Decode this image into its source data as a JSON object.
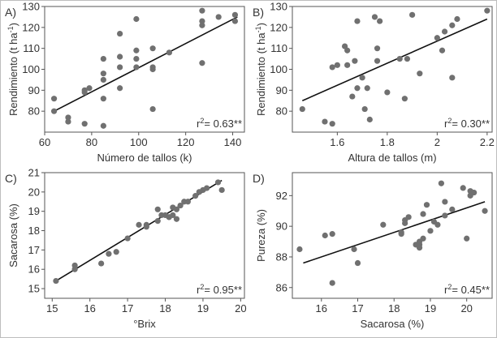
{
  "chart_data": [
    {
      "type": "scatter",
      "panel_label": "A)",
      "xlabel": "Número de tallos (k)",
      "ylabel": "Rendimiento (t ha-1)",
      "xlim": [
        60,
        145
      ],
      "ylim": [
        70,
        130
      ],
      "xticks": [
        60,
        80,
        100,
        120,
        140
      ],
      "yticks": [
        80,
        90,
        100,
        110,
        120,
        130
      ],
      "grid": false,
      "annotation": {
        "r2": "0.63",
        "sig": "**"
      },
      "fit": {
        "x1": 64,
        "y1": 80,
        "x2": 142,
        "y2": 125
      },
      "points": [
        [
          64,
          86
        ],
        [
          64,
          80
        ],
        [
          70,
          77
        ],
        [
          70,
          75
        ],
        [
          77,
          74
        ],
        [
          77,
          89
        ],
        [
          77,
          90
        ],
        [
          79,
          91
        ],
        [
          85,
          73
        ],
        [
          85,
          86
        ],
        [
          85,
          95
        ],
        [
          85,
          98
        ],
        [
          85,
          105
        ],
        [
          92,
          91
        ],
        [
          92,
          101
        ],
        [
          92,
          106
        ],
        [
          92,
          117
        ],
        [
          99,
          101
        ],
        [
          99,
          105
        ],
        [
          99,
          109
        ],
        [
          99,
          124
        ],
        [
          106,
          101
        ],
        [
          106,
          100
        ],
        [
          106,
          110
        ],
        [
          106,
          81
        ],
        [
          113,
          108
        ],
        [
          127,
          103
        ],
        [
          127,
          123
        ],
        [
          127,
          121
        ],
        [
          127,
          128
        ],
        [
          134,
          125
        ],
        [
          141,
          126
        ],
        [
          141,
          123
        ]
      ]
    },
    {
      "type": "scatter",
      "panel_label": "B)",
      "xlabel": "Altura de tallos (m)",
      "ylabel": "Rendimiento (t ha-1)",
      "xlim": [
        1.42,
        2.22
      ],
      "ylim": [
        70,
        130
      ],
      "xticks": [
        1.6,
        1.8,
        2.0,
        2.2
      ],
      "yticks": [
        80,
        90,
        100,
        110,
        120,
        130
      ],
      "grid": false,
      "annotation": {
        "r2": "0.30",
        "sig": "**"
      },
      "fit": {
        "x1": 1.46,
        "y1": 85,
        "x2": 2.2,
        "y2": 124
      },
      "points": [
        [
          1.46,
          81
        ],
        [
          1.55,
          75
        ],
        [
          1.58,
          101
        ],
        [
          1.58,
          74
        ],
        [
          1.6,
          102
        ],
        [
          1.63,
          111
        ],
        [
          1.64,
          102
        ],
        [
          1.64,
          109
        ],
        [
          1.66,
          87
        ],
        [
          1.67,
          104
        ],
        [
          1.68,
          91
        ],
        [
          1.68,
          123
        ],
        [
          1.7,
          96
        ],
        [
          1.71,
          81
        ],
        [
          1.72,
          91
        ],
        [
          1.73,
          76
        ],
        [
          1.75,
          125
        ],
        [
          1.76,
          110
        ],
        [
          1.76,
          104
        ],
        [
          1.77,
          123
        ],
        [
          1.8,
          89
        ],
        [
          1.85,
          105
        ],
        [
          1.87,
          86
        ],
        [
          1.88,
          105
        ],
        [
          1.9,
          126
        ],
        [
          1.93,
          98
        ],
        [
          2.0,
          115
        ],
        [
          2.02,
          109
        ],
        [
          2.03,
          118
        ],
        [
          2.06,
          121
        ],
        [
          2.06,
          96
        ],
        [
          2.08,
          124
        ],
        [
          2.2,
          128
        ]
      ]
    },
    {
      "type": "scatter",
      "panel_label": "C)",
      "xlabel": "°Brix",
      "ylabel": "Sacarosa (%)",
      "xlim": [
        14.8,
        20.1
      ],
      "ylim": [
        14.5,
        21
      ],
      "xticks": [
        15,
        16,
        17,
        18,
        19,
        20
      ],
      "yticks": [
        15,
        16,
        17,
        18,
        19,
        20,
        21
      ],
      "grid": false,
      "annotation": {
        "r2": "0.95",
        "sig": "**"
      },
      "fit": {
        "x1": 15.1,
        "y1": 15.4,
        "x2": 19.5,
        "y2": 20.6
      },
      "points": [
        [
          15.1,
          15.4
        ],
        [
          15.6,
          16.2
        ],
        [
          15.6,
          16.0
        ],
        [
          16.3,
          16.3
        ],
        [
          16.5,
          16.8
        ],
        [
          16.7,
          16.9
        ],
        [
          17.0,
          17.6
        ],
        [
          17.3,
          18.3
        ],
        [
          17.5,
          18.2
        ],
        [
          17.5,
          18.3
        ],
        [
          17.8,
          18.5
        ],
        [
          17.8,
          19.1
        ],
        [
          17.9,
          18.8
        ],
        [
          18.0,
          18.8
        ],
        [
          18.1,
          18.7
        ],
        [
          18.1,
          18.7
        ],
        [
          18.2,
          19.2
        ],
        [
          18.2,
          18.8
        ],
        [
          18.3,
          18.6
        ],
        [
          18.3,
          19.1
        ],
        [
          18.4,
          19.3
        ],
        [
          18.5,
          19.5
        ],
        [
          18.6,
          19.5
        ],
        [
          18.8,
          19.8
        ],
        [
          18.9,
          20.0
        ],
        [
          19.0,
          20.1
        ],
        [
          19.1,
          20.2
        ],
        [
          19.4,
          20.5
        ],
        [
          19.5,
          20.1
        ]
      ]
    },
    {
      "type": "scatter",
      "panel_label": "D)",
      "xlabel": "Sacarosa (%)",
      "ylabel": "Pureza (%)",
      "xlim": [
        15.2,
        20.7
      ],
      "ylim": [
        85.3,
        93.5
      ],
      "xticks": [
        16,
        17,
        18,
        19,
        20
      ],
      "yticks": [
        86,
        88,
        90,
        92
      ],
      "grid": false,
      "annotation": {
        "r2": "0.45",
        "sig": "**"
      },
      "fit": {
        "x1": 15.5,
        "y1": 87.6,
        "x2": 20.5,
        "y2": 91.6
      },
      "points": [
        [
          15.4,
          88.5
        ],
        [
          16.1,
          89.4
        ],
        [
          16.3,
          89.5
        ],
        [
          16.3,
          86.3
        ],
        [
          16.9,
          88.5
        ],
        [
          17.0,
          87.6
        ],
        [
          17.7,
          90.1
        ],
        [
          18.2,
          89.5
        ],
        [
          18.2,
          89.6
        ],
        [
          18.3,
          90.2
        ],
        [
          18.3,
          90.4
        ],
        [
          18.4,
          90.6
        ],
        [
          18.6,
          88.8
        ],
        [
          18.7,
          88.6
        ],
        [
          18.7,
          88.8
        ],
        [
          18.7,
          89.0
        ],
        [
          18.8,
          89.2
        ],
        [
          18.8,
          90.8
        ],
        [
          18.9,
          91.4
        ],
        [
          19.0,
          89.7
        ],
        [
          19.1,
          90.3
        ],
        [
          19.2,
          90.1
        ],
        [
          19.3,
          92.8
        ],
        [
          19.4,
          91.6
        ],
        [
          19.4,
          90.7
        ],
        [
          19.6,
          91.1
        ],
        [
          19.9,
          92.5
        ],
        [
          20.0,
          89.2
        ],
        [
          20.1,
          92.3
        ],
        [
          20.1,
          92.0
        ],
        [
          20.2,
          92.2
        ],
        [
          20.5,
          91.0
        ]
      ]
    }
  ]
}
